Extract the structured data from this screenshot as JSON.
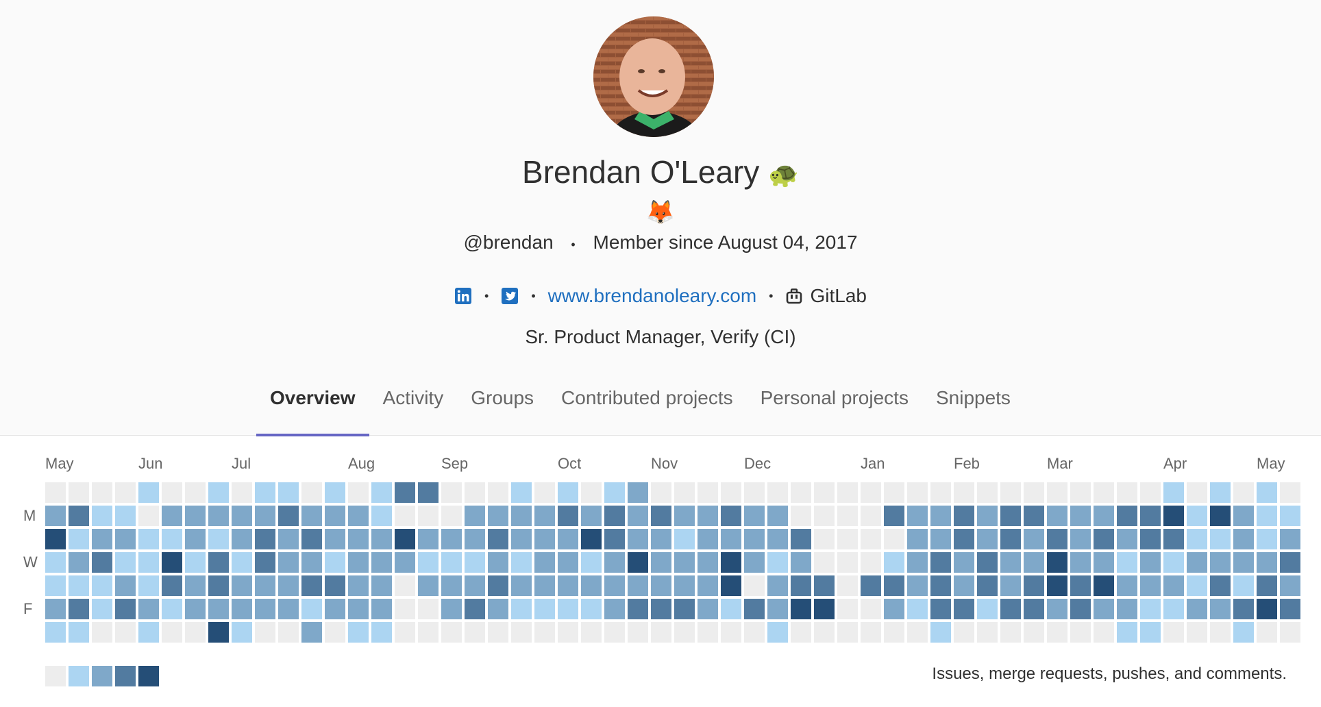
{
  "profile": {
    "name": "Brendan O'Leary",
    "username": "@brendan",
    "member_since": "Member since August 04, 2017",
    "website": "www.brendanoleary.com",
    "organization": "GitLab",
    "bio": "Sr. Product Manager, Verify (CI)",
    "icons": [
      "linkedin-icon",
      "twitter-icon",
      "briefcase-icon"
    ]
  },
  "tabs": [
    {
      "label": "Overview",
      "active": true
    },
    {
      "label": "Activity"
    },
    {
      "label": "Groups"
    },
    {
      "label": "Contributed projects"
    },
    {
      "label": "Personal projects"
    },
    {
      "label": "Snippets"
    }
  ],
  "calendar": {
    "months": [
      {
        "label": "May",
        "week": 0
      },
      {
        "label": "Jun",
        "week": 4
      },
      {
        "label": "Jul",
        "week": 8
      },
      {
        "label": "Aug",
        "week": 13
      },
      {
        "label": "Sep",
        "week": 17
      },
      {
        "label": "Oct",
        "week": 22
      },
      {
        "label": "Nov",
        "week": 26
      },
      {
        "label": "Dec",
        "week": 30
      },
      {
        "label": "Jan",
        "week": 35
      },
      {
        "label": "Feb",
        "week": 39
      },
      {
        "label": "Mar",
        "week": 43
      },
      {
        "label": "Apr",
        "week": 48
      },
      {
        "label": "May",
        "week": 52
      }
    ],
    "days": [
      {
        "label": "M",
        "row": 1
      },
      {
        "label": "W",
        "row": 3
      },
      {
        "label": "F",
        "row": 5
      }
    ],
    "level_colors": [
      "#ededed",
      "#acd5f2",
      "#7fa8c9",
      "#527ba0",
      "#254e77"
    ],
    "rows": [
      "000010010110101330001010120000000000000000000000101010",
      "231102222232221000222232323223220000322323322233414211",
      "412211212323222422232224322122223000022323232323311212",
      "1231141313221222111212212422242120001232322422121222233",
      "11121323222332202223222222222402330332323234342221313242",
      "2313212222212220023211112333213244002133133232211223432",
      "11001004100201100000000000000001000000100000001100010000"
    ],
    "legend_text": "Issues, merge requests, pushes, and comments."
  }
}
